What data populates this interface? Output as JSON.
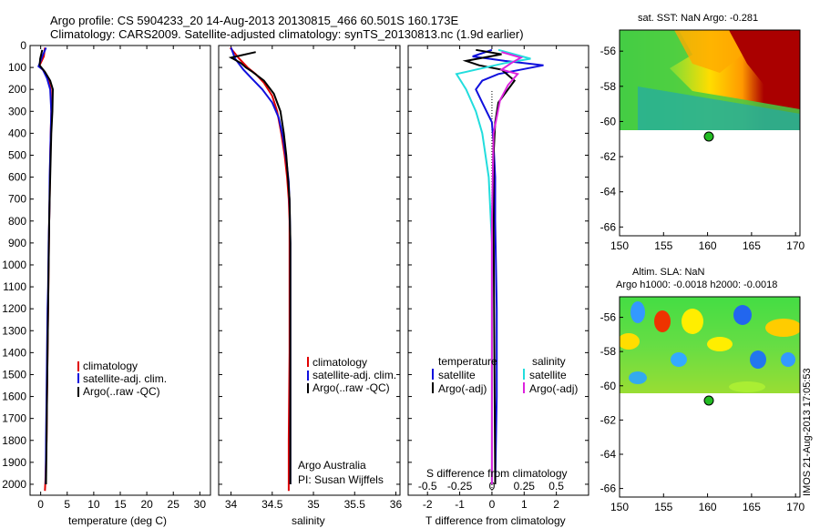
{
  "header": {
    "line1": "Argo profile: CS 5904233_20 14-Aug-2013 20130815_466 60.501S 160.173E",
    "line2": "Climatology: CARS2009. Satellite-adjusted climatology: synTS_20130813.nc (1.9d earlier)"
  },
  "colors": {
    "climatology": "#e00000",
    "satellite_clim": "#1010dd",
    "argo": "#000000",
    "sal_satellite": "#22dddd",
    "sal_argo": "#dd22dd",
    "float_marker": "#22bb22"
  },
  "chart_data": [
    {
      "id": "temperature",
      "type": "line",
      "xlabel": "temperature (deg C)",
      "xlim": [
        -2,
        32
      ],
      "ylim": [
        2050,
        0
      ],
      "xticks": [
        0,
        5,
        10,
        15,
        20,
        25,
        30
      ],
      "yticks": [
        0,
        100,
        200,
        300,
        400,
        500,
        600,
        700,
        800,
        900,
        1000,
        1100,
        1200,
        1300,
        1400,
        1500,
        1600,
        1700,
        1800,
        1900,
        2000
      ],
      "legend": [
        "climatology",
        "satellite-adj. clim.",
        "Argo(..raw -QC)"
      ],
      "series": [
        {
          "name": "climatology",
          "color": "#e00000",
          "x": [
            0.8,
            0.6,
            -0.3,
            0.6,
            1.4,
            1.9,
            2.0,
            1.9,
            1.8,
            1.75,
            1.7,
            1.6,
            1.55,
            1.5,
            1.45,
            1.4,
            1.3,
            1.2,
            1.1,
            0.9,
            0.8
          ],
          "y": [
            10,
            50,
            95,
            115,
            150,
            200,
            300,
            400,
            500,
            600,
            700,
            800,
            900,
            1000,
            1100,
            1200,
            1400,
            1600,
            1800,
            1980,
            2030
          ]
        },
        {
          "name": "satellite-adj. clim.",
          "color": "#1010dd",
          "x": [
            1.0,
            0.3,
            -0.4,
            0.4,
            1.2,
            1.8,
            2.0,
            1.9,
            1.8,
            1.7,
            1.65,
            1.6,
            1.5,
            1.45,
            1.4,
            1.3,
            1.2,
            1.1,
            1.0,
            0.95
          ],
          "y": [
            10,
            50,
            95,
            110,
            150,
            200,
            300,
            400,
            500,
            600,
            700,
            800,
            900,
            1000,
            1100,
            1200,
            1400,
            1600,
            1800,
            2000
          ]
        },
        {
          "name": "Argo(..raw -QC)",
          "color": "#000000",
          "x": [
            0.3,
            -0.1,
            -0.2,
            0.8,
            1.8,
            2.3,
            2.2,
            2.0,
            1.9,
            1.8,
            1.7,
            1.6,
            1.5,
            1.4,
            1.3,
            1.2,
            1.1,
            1.0
          ],
          "y": [
            20,
            60,
            90,
            120,
            160,
            200,
            300,
            400,
            500,
            600,
            700,
            800,
            1000,
            1200,
            1400,
            1600,
            1800,
            2000
          ]
        }
      ]
    },
    {
      "id": "salinity",
      "type": "line",
      "xlabel": "salinity",
      "xlim": [
        33.85,
        36.05
      ],
      "ylim": [
        2050,
        0
      ],
      "xticks": [
        34,
        34.5,
        35,
        35.5,
        36
      ],
      "legend": [
        "climatology",
        "satellite-adj. clim.",
        "Argo(..raw -QC)"
      ],
      "annotation": [
        "Argo Australia",
        "PI: Susan Wijffels"
      ],
      "series": [
        {
          "name": "climatology",
          "color": "#e00000",
          "x": [
            33.99,
            34.1,
            34.2,
            34.3,
            34.4,
            34.5,
            34.56,
            34.61,
            34.65,
            34.68,
            34.7,
            34.71,
            34.71,
            34.71,
            34.7,
            34.7
          ],
          "y": [
            10,
            60,
            100,
            130,
            170,
            230,
            300,
            400,
            500,
            600,
            700,
            800,
            1000,
            1400,
            1800,
            2030
          ]
        },
        {
          "name": "satellite-adj. clim.",
          "color": "#1010dd",
          "x": [
            34.0,
            34.05,
            34.15,
            34.25,
            34.38,
            34.5,
            34.58,
            34.63,
            34.67,
            34.7,
            34.71,
            34.72,
            34.72,
            34.72,
            34.72
          ],
          "y": [
            10,
            60,
            110,
            150,
            200,
            260,
            330,
            420,
            520,
            620,
            720,
            900,
            1200,
            1600,
            2000
          ]
        },
        {
          "name": "Argo(..raw -QC)",
          "color": "#000000",
          "x": [
            34.3,
            34.0,
            34.12,
            34.18,
            34.26,
            34.4,
            34.52,
            34.6,
            34.64,
            34.67,
            34.69,
            34.71,
            34.72,
            34.72,
            34.72
          ],
          "y": [
            30,
            55,
            80,
            100,
            120,
            160,
            220,
            300,
            400,
            500,
            600,
            700,
            900,
            1300,
            2000
          ]
        }
      ]
    },
    {
      "id": "difference",
      "type": "line",
      "xlabel": "T difference from climatology",
      "xlabel_top": "S difference from climatology",
      "xlim": [
        -2.6,
        3
      ],
      "ylim": [
        2050,
        0
      ],
      "xticks": [
        -2,
        -1,
        0,
        1,
        2
      ],
      "xticks_top": [
        "-0.5",
        "-0.25",
        "0",
        "0.25",
        "0.5"
      ],
      "legend_headers": [
        "temperature",
        "salinity"
      ],
      "legend_temperature": [
        "satellite",
        "Argo(-adj)"
      ],
      "legend_salinity": [
        "satellite",
        "Argo(-adj)"
      ],
      "series": [
        {
          "name": "temperature satellite",
          "color": "#1010dd",
          "x": [
            0,
            -0.6,
            0.4,
            1.6,
            0.2,
            -0.3,
            -0.5,
            -0.3,
            0.0,
            0.05,
            0.1,
            0.1,
            0.15,
            0.15,
            0.1
          ],
          "y": [
            20,
            50,
            70,
            90,
            130,
            160,
            200,
            260,
            350,
            450,
            600,
            800,
            1200,
            1600,
            2000
          ]
        },
        {
          "name": "temperature Argo(-adj)",
          "color": "#000000",
          "x": [
            -0.5,
            0.3,
            -0.8,
            -0.4,
            0.3,
            0.7,
            0.5,
            0.2,
            0.1,
            0.05,
            0.05,
            0.1
          ],
          "y": [
            20,
            40,
            70,
            90,
            110,
            160,
            200,
            260,
            350,
            500,
            800,
            2000
          ]
        },
        {
          "name": "salinity satellite",
          "color": "#22dddd",
          "x": [
            0.2,
            1.2,
            0.4,
            -1.1,
            -0.8,
            -0.5,
            -0.3,
            -0.1,
            0.0,
            0.0,
            0.0
          ],
          "y": [
            20,
            60,
            80,
            130,
            200,
            300,
            400,
            600,
            900,
            1400,
            2000
          ]
        },
        {
          "name": "salinity Argo(-adj)",
          "color": "#dd22dd",
          "x": [
            0.3,
            0.9,
            0.6,
            0.3,
            0.8,
            0.5,
            0.25,
            0.05,
            0.0,
            0.0
          ],
          "y": [
            30,
            55,
            80,
            110,
            130,
            180,
            250,
            400,
            800,
            2000
          ]
        }
      ]
    }
  ],
  "map_sst": {
    "title": "sat. SST: NaN Argo: -0.281",
    "xticks": [
      150,
      155,
      160,
      165,
      170
    ],
    "yticks": [
      -56,
      -58,
      -60,
      -62,
      -64,
      -66
    ],
    "lon_range": [
      150,
      170.5
    ],
    "lat_range": [
      -66.5,
      -54.8
    ],
    "float_lon": 160.17,
    "float_lat": -60.5
  },
  "map_sla": {
    "title1": "Altim. SLA: NaN",
    "title2": "Argo h1000: -0.0018 h2000: -0.0018",
    "xticks": [
      150,
      155,
      160,
      165,
      170
    ],
    "yticks": [
      -56,
      -58,
      -60,
      -62,
      -64,
      -66
    ],
    "lon_range": [
      150,
      170.5
    ],
    "lat_range": [
      -66.5,
      -54.8
    ],
    "float_lon": 160.17,
    "float_lat": -60.5
  },
  "footer": "IMOS 21-Aug-2013 17:05:53"
}
